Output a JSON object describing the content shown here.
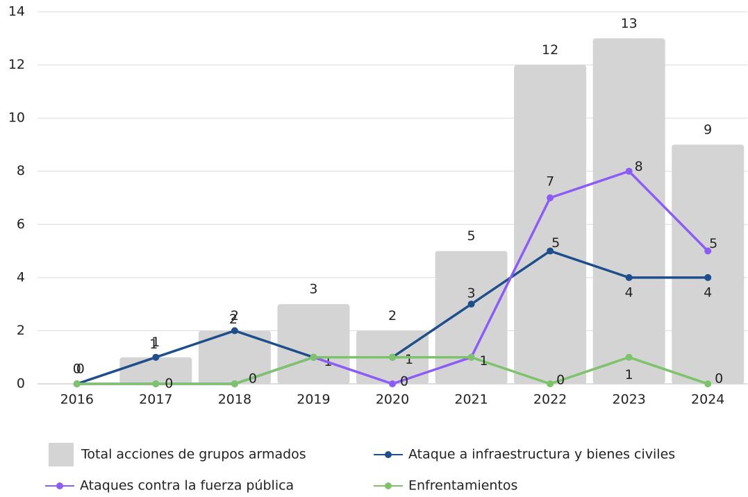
{
  "chart_data": {
    "type": "combo",
    "categories": [
      "2016",
      "2017",
      "2018",
      "2019",
      "2020",
      "2021",
      "2022",
      "2023",
      "2024"
    ],
    "series": [
      {
        "name": "Total acciones de grupos armados",
        "type": "bar",
        "color": "#d4d4d4",
        "values": [
          0,
          1,
          2,
          3,
          2,
          5,
          12,
          13,
          9
        ]
      },
      {
        "name": "Ataque a infraestructura y bienes civiles",
        "type": "line",
        "color": "#1f4e8c",
        "values": [
          0,
          1,
          2,
          1,
          1,
          3,
          5,
          4,
          4
        ]
      },
      {
        "name": "Ataques contra la fuerza pública",
        "type": "line",
        "color": "#8b5cf6",
        "values": [
          0,
          0,
          0,
          1,
          0,
          1,
          7,
          8,
          5
        ]
      },
      {
        "name": "Enfrentamientos",
        "type": "line",
        "color": "#7dc36b",
        "values": [
          0,
          0,
          0,
          1,
          1,
          1,
          0,
          1,
          0
        ]
      }
    ],
    "ylim": [
      0,
      14
    ],
    "yticks": [
      0,
      2,
      4,
      6,
      8,
      10,
      12,
      14
    ],
    "grid": true
  }
}
